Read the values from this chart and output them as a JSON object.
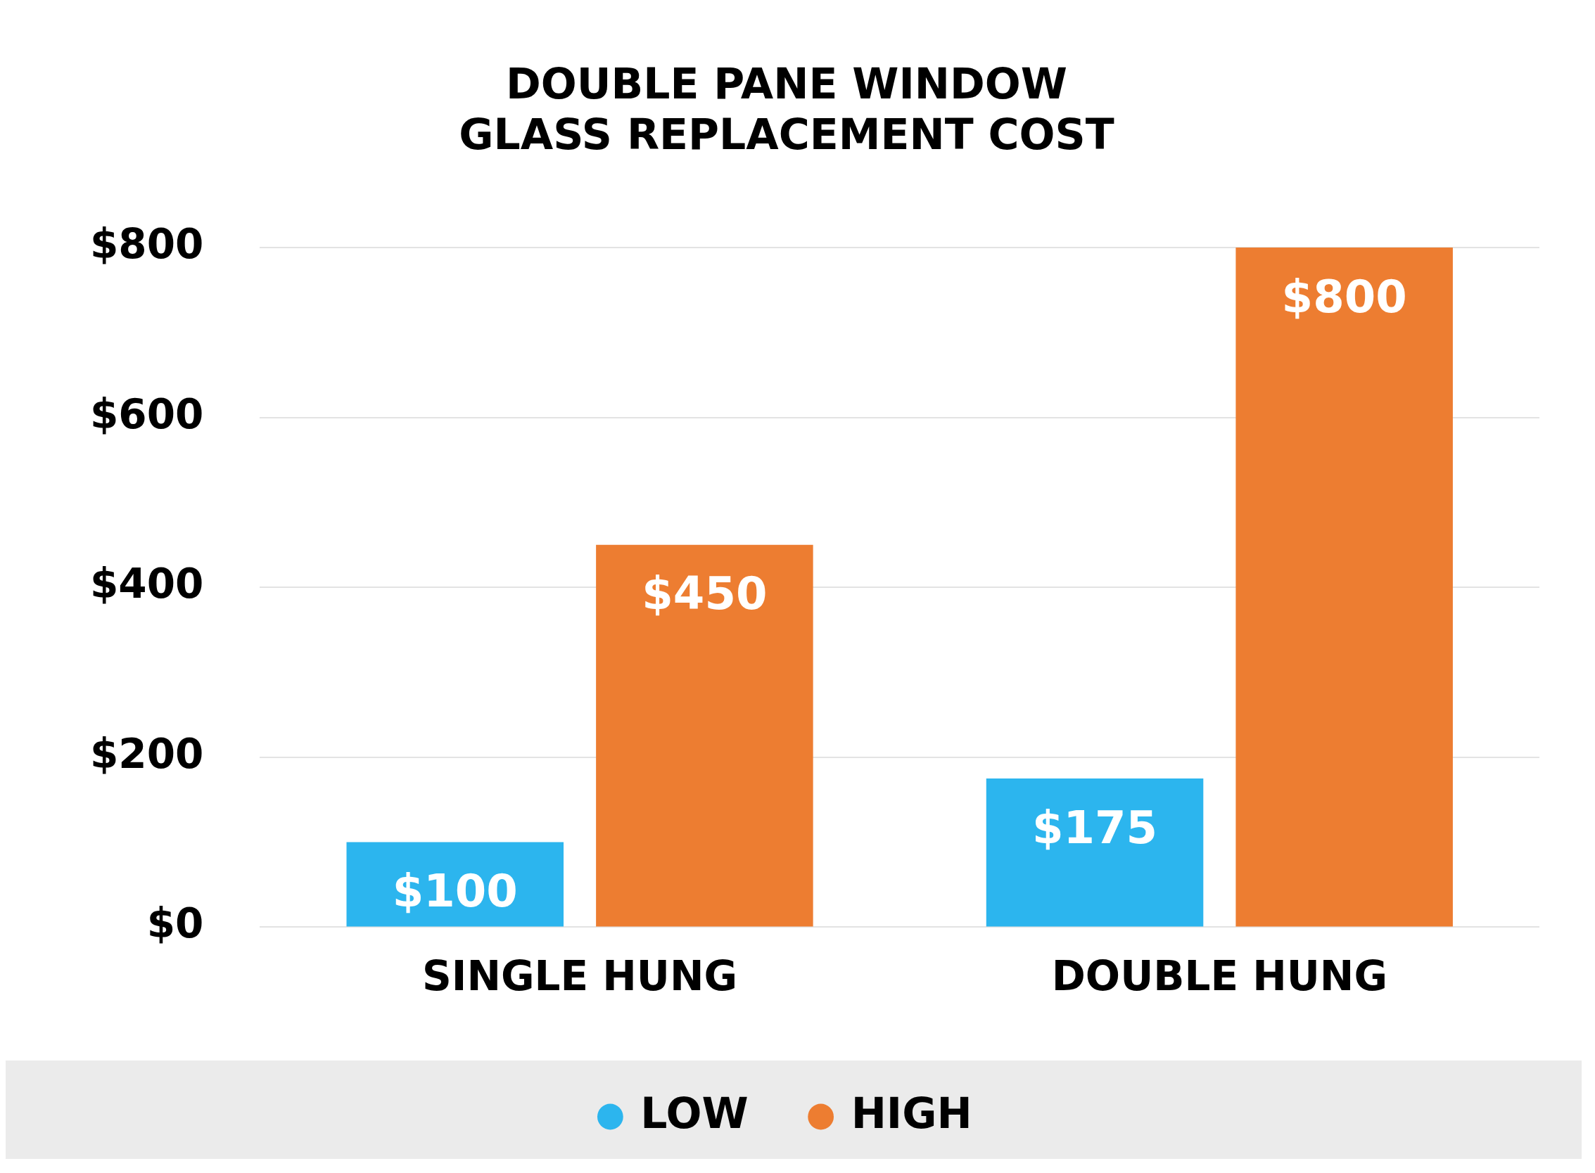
{
  "chart_data": {
    "type": "bar",
    "title": "DOUBLE PANE WINDOW\nGLASS REPLACEMENT COST",
    "categories": [
      "SINGLE HUNG",
      "DOUBLE HUNG"
    ],
    "series": [
      {
        "name": "LOW",
        "color": "#2cb5ee",
        "values": [
          100,
          175
        ],
        "value_labels": [
          "$100",
          "$175"
        ]
      },
      {
        "name": "HIGH",
        "color": "#ed7d31",
        "values": [
          450,
          800
        ],
        "value_labels": [
          "$450",
          "$800"
        ]
      }
    ],
    "ylim": [
      0,
      800
    ],
    "yticks": [
      {
        "value": 0,
        "label": "$0"
      },
      {
        "value": 200,
        "label": "$200"
      },
      {
        "value": 400,
        "label": "$400"
      },
      {
        "value": 600,
        "label": "$600"
      },
      {
        "value": 800,
        "label": "$800"
      }
    ],
    "grid": "y",
    "legend": "bottom"
  }
}
